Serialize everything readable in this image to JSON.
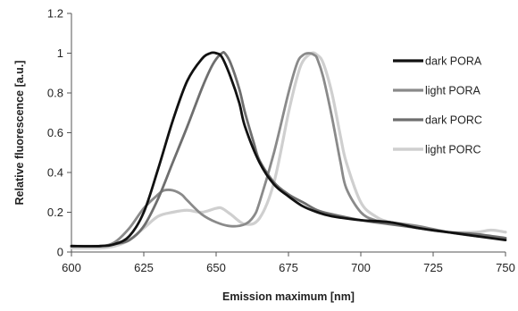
{
  "chart_data": {
    "type": "line",
    "title": "",
    "xlabel": "Emission maximum [nm]",
    "ylabel": "Relative fluorescence [a.u.]",
    "xlim": [
      600,
      750
    ],
    "ylim": [
      0,
      1.2
    ],
    "x_ticks": [
      "600",
      "625",
      "650",
      "675",
      "700",
      "725",
      "750"
    ],
    "y_ticks": [
      "0",
      "0.2",
      "0.4",
      "0.6",
      "0.8",
      "1",
      "1.2"
    ],
    "grid": false,
    "legend_position": "right",
    "series": [
      {
        "name": "dark PORA",
        "color": "#111111",
        "width": 2.8,
        "x": [
          600,
          610,
          615,
          620,
          625,
          630,
          635,
          640,
          645,
          648,
          650,
          652,
          655,
          658,
          660,
          665,
          670,
          675,
          680,
          685,
          690,
          700,
          710,
          720,
          730,
          740,
          750
        ],
        "y": [
          0.03,
          0.03,
          0.04,
          0.08,
          0.2,
          0.42,
          0.66,
          0.86,
          0.97,
          1.0,
          1.0,
          0.98,
          0.88,
          0.75,
          0.63,
          0.45,
          0.34,
          0.28,
          0.23,
          0.2,
          0.18,
          0.16,
          0.15,
          0.12,
          0.1,
          0.08,
          0.06
        ]
      },
      {
        "name": "light PORA",
        "color": "#8a8a8a",
        "width": 2.8,
        "x": [
          600,
          610,
          615,
          620,
          625,
          630,
          632,
          635,
          638,
          640,
          645,
          650,
          655,
          660,
          663,
          665,
          670,
          675,
          678,
          680,
          682,
          684,
          685,
          687,
          690,
          693,
          695,
          700,
          705,
          710,
          720,
          730,
          740,
          750
        ],
        "y": [
          0.03,
          0.03,
          0.05,
          0.12,
          0.22,
          0.29,
          0.31,
          0.31,
          0.29,
          0.26,
          0.19,
          0.15,
          0.13,
          0.14,
          0.18,
          0.25,
          0.5,
          0.8,
          0.95,
          0.99,
          1.0,
          0.99,
          0.97,
          0.88,
          0.68,
          0.45,
          0.32,
          0.2,
          0.16,
          0.15,
          0.13,
          0.1,
          0.08,
          0.07
        ]
      },
      {
        "name": "dark PORC",
        "color": "#6e6e6e",
        "width": 2.8,
        "x": [
          600,
          610,
          615,
          620,
          625,
          630,
          635,
          640,
          645,
          648,
          650,
          652,
          653,
          655,
          658,
          660,
          663,
          665,
          670,
          675,
          680,
          685,
          690,
          700,
          710,
          720,
          730,
          740,
          750
        ],
        "y": [
          0.03,
          0.03,
          0.04,
          0.06,
          0.13,
          0.27,
          0.45,
          0.63,
          0.82,
          0.92,
          0.97,
          1.0,
          1.0,
          0.95,
          0.82,
          0.7,
          0.55,
          0.46,
          0.35,
          0.29,
          0.25,
          0.21,
          0.19,
          0.16,
          0.14,
          0.12,
          0.1,
          0.09,
          0.07
        ]
      },
      {
        "name": "light PORC",
        "color": "#cfcfcf",
        "width": 3.2,
        "x": [
          600,
          610,
          615,
          620,
          625,
          630,
          635,
          640,
          645,
          650,
          652,
          655,
          660,
          665,
          670,
          675,
          678,
          680,
          683,
          685,
          687,
          690,
          693,
          695,
          700,
          705,
          710,
          720,
          730,
          740,
          745,
          750
        ],
        "y": [
          0.02,
          0.02,
          0.03,
          0.06,
          0.12,
          0.18,
          0.2,
          0.21,
          0.2,
          0.22,
          0.22,
          0.19,
          0.14,
          0.17,
          0.35,
          0.7,
          0.88,
          0.96,
          1.0,
          0.99,
          0.95,
          0.8,
          0.58,
          0.45,
          0.25,
          0.18,
          0.15,
          0.12,
          0.1,
          0.1,
          0.11,
          0.1
        ]
      }
    ]
  }
}
